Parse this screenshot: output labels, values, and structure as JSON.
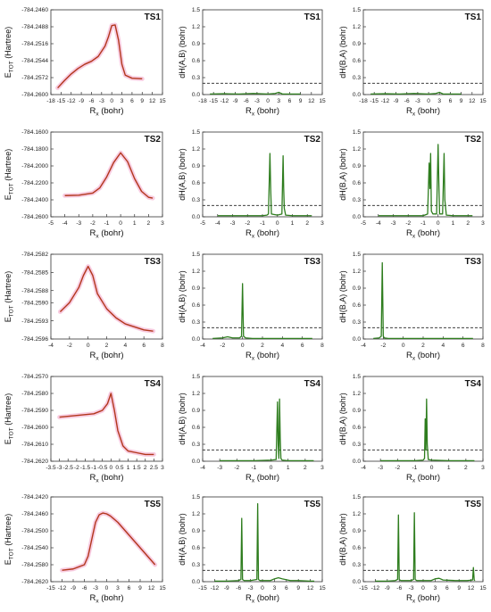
{
  "colors": {
    "energy": "#b2371c",
    "energy_glow": "#f2a3c8",
    "index": "#2e7d1e",
    "threshold": "#222222",
    "frame": "#333333"
  },
  "columns": {
    "energy_ylabel_main": "E",
    "energy_ylabel_sub": "TOT",
    "energy_ylabel_tail": "(Hartree)",
    "ab_ylabel": "dH(A,B) (bohr)",
    "ba_ylabel": "dH(B,A) (bohr)",
    "xlabel_main": "R",
    "xlabel_sub": "x",
    "xlabel_tail": "(bohr)"
  },
  "chart_data": [
    {
      "type": "line",
      "row": 0,
      "col": 0,
      "title": "TS1",
      "xlabel": "Rx (bohr)",
      "ylabel": "ETOT (Hartree)",
      "xlim": [
        -18,
        15
      ],
      "xticks": [
        -18,
        -15,
        -12,
        -9,
        -6,
        -3,
        0,
        3,
        6,
        9,
        12,
        15
      ],
      "ylim": [
        -784.26,
        -784.246
      ],
      "yticks": [
        -784.26,
        -784.2572,
        -784.2544,
        -784.2516,
        -784.2488,
        -784.246
      ],
      "series": [
        {
          "x": [
            -16,
            -14,
            -12,
            -10,
            -8,
            -6,
            -4,
            -2,
            -1,
            0,
            1,
            2,
            3,
            4,
            6,
            9
          ],
          "y": [
            -784.2589,
            -784.2577,
            -784.2566,
            -784.2557,
            -784.255,
            -784.2545,
            -784.2537,
            -784.252,
            -784.2505,
            -784.2486,
            -784.2485,
            -784.251,
            -784.255,
            -784.2568,
            -784.2573,
            -784.2574
          ]
        }
      ]
    },
    {
      "type": "line",
      "row": 0,
      "col": 1,
      "title": "TS1",
      "xlabel": "Rx (bohr)",
      "ylabel": "dH(A,B) (bohr)",
      "xlim": [
        -18,
        15
      ],
      "xticks": [
        -18,
        -15,
        -12,
        -9,
        -6,
        -3,
        0,
        3,
        6,
        9,
        12,
        15
      ],
      "ylim": [
        0,
        1.5
      ],
      "yticks": [
        0,
        0.3,
        0.6,
        0.9,
        1.2,
        1.5
      ],
      "threshold": 0.2,
      "series": [
        {
          "x": [
            -16,
            -12,
            -8,
            -4,
            0,
            2,
            3,
            4,
            6,
            9
          ],
          "y": [
            0.01,
            0.015,
            0.01,
            0.02,
            0.01,
            0.02,
            0.04,
            0.01,
            0.01,
            0.01
          ]
        }
      ]
    },
    {
      "type": "line",
      "row": 0,
      "col": 2,
      "title": "TS1",
      "xlabel": "Rx (bohr)",
      "ylabel": "dH(B,A) (bohr)",
      "xlim": [
        -18,
        15
      ],
      "xticks": [
        -18,
        -15,
        -12,
        -9,
        -6,
        -3,
        0,
        3,
        6,
        9,
        12,
        15
      ],
      "ylim": [
        0,
        1.5
      ],
      "yticks": [
        0,
        0.3,
        0.6,
        0.9,
        1.2,
        1.5
      ],
      "threshold": 0.2,
      "series": [
        {
          "x": [
            -16,
            -12,
            -8,
            -4,
            0,
            2,
            3,
            4,
            6,
            9
          ],
          "y": [
            0.01,
            0.015,
            0.01,
            0.02,
            0.01,
            0.02,
            0.04,
            0.01,
            0.01,
            0.01
          ]
        }
      ]
    },
    {
      "type": "line",
      "row": 1,
      "col": 0,
      "title": "TS2",
      "xlabel": "Rx (bohr)",
      "ylabel": "ETOT (Hartree)",
      "xlim": [
        -5,
        3
      ],
      "xticks": [
        -5,
        -4,
        -3,
        -2,
        -1,
        0,
        1,
        2,
        3
      ],
      "ylim": [
        -784.26,
        -784.16
      ],
      "yticks": [
        -784.26,
        -784.24,
        -784.22,
        -784.2,
        -784.18,
        -784.16
      ],
      "series": [
        {
          "x": [
            -4,
            -3,
            -2,
            -1.5,
            -1,
            -0.5,
            0,
            0.5,
            1,
            1.5,
            2,
            2.3
          ],
          "y": [
            -784.235,
            -784.2345,
            -784.232,
            -784.226,
            -784.213,
            -784.196,
            -784.1845,
            -784.195,
            -784.215,
            -784.23,
            -784.237,
            -784.238
          ]
        }
      ]
    },
    {
      "type": "line",
      "row": 1,
      "col": 1,
      "title": "TS2",
      "xlabel": "Rx (bohr)",
      "ylabel": "dH(A,B) (bohr)",
      "xlim": [
        -5,
        3
      ],
      "xticks": [
        -5,
        -4,
        -3,
        -2,
        -1,
        0,
        1,
        2,
        3
      ],
      "ylim": [
        0,
        1.5
      ],
      "yticks": [
        0,
        0.3,
        0.6,
        0.9,
        1.2,
        1.5
      ],
      "threshold": 0.2,
      "series": [
        {
          "x": [
            -4,
            -3,
            -2,
            -1,
            -0.7,
            -0.6,
            -0.5,
            -0.45,
            -0.4,
            0,
            0.3,
            0.38,
            0.42,
            0.46,
            0.55,
            1,
            2,
            2.3
          ],
          "y": [
            0.02,
            0.02,
            0.02,
            0.02,
            0.03,
            0.05,
            1.12,
            0.5,
            0.05,
            0.03,
            0.05,
            1.08,
            0.5,
            0.15,
            0.03,
            0.02,
            0.02,
            0.02
          ]
        }
      ]
    },
    {
      "type": "line",
      "row": 1,
      "col": 2,
      "title": "TS2",
      "xlabel": "Rx (bohr)",
      "ylabel": "dH(B,A) (bohr)",
      "xlim": [
        -5,
        3
      ],
      "xticks": [
        -5,
        -4,
        -3,
        -2,
        -1,
        0,
        1,
        2,
        3
      ],
      "ylim": [
        0,
        1.5
      ],
      "yticks": [
        0,
        0.3,
        0.6,
        0.9,
        1.2,
        1.5
      ],
      "threshold": 0.2,
      "series": [
        {
          "x": [
            -4,
            -3,
            -2,
            -1,
            -0.7,
            -0.6,
            -0.55,
            -0.5,
            -0.45,
            -0.35,
            -0.1,
            0.0,
            0.05,
            0.1,
            0.3,
            0.4,
            0.45,
            0.55,
            1,
            2,
            2.3
          ],
          "y": [
            0.02,
            0.02,
            0.02,
            0.02,
            0.05,
            0.95,
            0.5,
            1.12,
            0.1,
            0.05,
            0.05,
            1.28,
            0.6,
            0.05,
            0.05,
            1.12,
            0.3,
            0.03,
            0.02,
            0.02,
            0.02
          ]
        }
      ]
    },
    {
      "type": "line",
      "row": 2,
      "col": 0,
      "title": "TS3",
      "xlabel": "Rx (bohr)",
      "ylabel": "ETOT (Hartree)",
      "xlim": [
        -4,
        8
      ],
      "xticks": [
        -4,
        -2,
        0,
        2,
        4,
        6,
        8
      ],
      "ylim": [
        -784.2596,
        -784.2582
      ],
      "yticks": [
        -784.2596,
        -784.2593,
        -784.259,
        -784.2588,
        -784.2585,
        -784.2582
      ],
      "series": [
        {
          "x": [
            -3,
            -2,
            -1,
            -0.5,
            0,
            0.5,
            1,
            2,
            3,
            4,
            5,
            6,
            7
          ],
          "y": [
            -784.25915,
            -784.259,
            -784.25875,
            -784.25855,
            -784.2584,
            -784.25855,
            -784.25885,
            -784.2591,
            -784.25925,
            -784.25935,
            -784.2594,
            -784.25945,
            -784.25947
          ]
        }
      ]
    },
    {
      "type": "line",
      "row": 2,
      "col": 1,
      "title": "TS3",
      "xlabel": "Rx (bohr)",
      "ylabel": "dH(A,B) (bohr)",
      "xlim": [
        -4,
        8
      ],
      "xticks": [
        -4,
        -2,
        0,
        2,
        4,
        6,
        8
      ],
      "ylim": [
        0,
        1.5
      ],
      "yticks": [
        0,
        0.3,
        0.6,
        0.9,
        1.2,
        1.5
      ],
      "threshold": 0.2,
      "series": [
        {
          "x": [
            -3,
            -2,
            -1.5,
            -1,
            -0.3,
            -0.1,
            0,
            0.1,
            0.3,
            1,
            3,
            5,
            7
          ],
          "y": [
            0.01,
            0.02,
            0.04,
            0.02,
            0.02,
            0.05,
            0.98,
            0.05,
            0.02,
            0.01,
            0.01,
            0.01,
            0.01
          ]
        }
      ]
    },
    {
      "type": "line",
      "row": 2,
      "col": 2,
      "title": "TS3",
      "xlabel": "Rx (bohr)",
      "ylabel": "dH(B,A) (bohr)",
      "xlim": [
        -4,
        8
      ],
      "xticks": [
        -4,
        -2,
        0,
        2,
        4,
        6,
        8
      ],
      "ylim": [
        0,
        1.5
      ],
      "yticks": [
        0,
        0.3,
        0.6,
        0.9,
        1.2,
        1.5
      ],
      "threshold": 0.2,
      "series": [
        {
          "x": [
            -3,
            -2.4,
            -2.2,
            -2.1,
            -2.0,
            -1.9,
            -1.5,
            0,
            3,
            5,
            7
          ],
          "y": [
            0.01,
            0.02,
            0.05,
            1.35,
            0.05,
            0.02,
            0.01,
            0.01,
            0.01,
            0.01,
            0.01
          ]
        }
      ]
    },
    {
      "type": "line",
      "row": 3,
      "col": 0,
      "title": "TS4",
      "xlabel": "Rx (bohr)",
      "ylabel": "ETOT (Hartree)",
      "xlim": [
        -3.5,
        3
      ],
      "xticks": [
        -3.5,
        -3,
        -2.5,
        -2,
        -1.5,
        -1,
        -0.5,
        0,
        0.5,
        1,
        1.5,
        2,
        2.5,
        3
      ],
      "ylim": [
        -784.262,
        -784.257
      ],
      "yticks": [
        -784.262,
        -784.261,
        -784.26,
        -784.259,
        -784.258,
        -784.257
      ],
      "series": [
        {
          "x": [
            -3,
            -2,
            -1,
            -0.5,
            -0.2,
            0,
            0.2,
            0.4,
            0.7,
            1,
            1.5,
            2,
            2.5
          ],
          "y": [
            -784.2594,
            -784.2593,
            -784.2592,
            -784.259,
            -784.2586,
            -784.258,
            -784.259,
            -784.2602,
            -784.2611,
            -784.2614,
            -784.2615,
            -784.2616,
            -784.2616
          ]
        }
      ]
    },
    {
      "type": "line",
      "row": 3,
      "col": 1,
      "title": "TS4",
      "xlabel": "Rx (bohr)",
      "ylabel": "dH(A,B) (bohr)",
      "xlim": [
        -4,
        3
      ],
      "xticks": [
        -4,
        -3,
        -2,
        -1,
        0,
        1,
        2,
        3
      ],
      "ylim": [
        0,
        1.5
      ],
      "yticks": [
        0,
        0.3,
        0.6,
        0.9,
        1.2,
        1.5
      ],
      "threshold": 0.2,
      "series": [
        {
          "x": [
            -3,
            -2,
            -1,
            0,
            0.3,
            0.38,
            0.42,
            0.46,
            0.5,
            0.54,
            0.58,
            0.65,
            1,
            2,
            2.5
          ],
          "y": [
            0.01,
            0.01,
            0.01,
            0.02,
            0.03,
            1.05,
            0.3,
            0.05,
            1.1,
            0.4,
            0.05,
            0.02,
            0.01,
            0.01,
            0.01
          ]
        }
      ]
    },
    {
      "type": "line",
      "row": 3,
      "col": 2,
      "title": "TS4",
      "xlabel": "Rx (bohr)",
      "ylabel": "dH(B,A) (bohr)",
      "xlim": [
        -4,
        3
      ],
      "xticks": [
        -4,
        -3,
        -2,
        -1,
        0,
        1,
        2,
        3
      ],
      "ylim": [
        0,
        1.5
      ],
      "yticks": [
        0,
        0.3,
        0.6,
        0.9,
        1.2,
        1.5
      ],
      "threshold": 0.2,
      "series": [
        {
          "x": [
            -3,
            -2,
            -1,
            -0.5,
            -0.42,
            -0.38,
            -0.34,
            -0.3,
            -0.26,
            -0.2,
            0,
            1,
            2,
            2.5
          ],
          "y": [
            0.01,
            0.01,
            0.01,
            0.02,
            0.05,
            0.75,
            0.2,
            1.1,
            0.3,
            0.03,
            0.02,
            0.01,
            0.01,
            0.01
          ]
        }
      ]
    },
    {
      "type": "line",
      "row": 4,
      "col": 0,
      "title": "TS5",
      "xlabel": "Rx (bohr)",
      "ylabel": "ETOT (Hartree)",
      "xlim": [
        -15,
        15
      ],
      "xticks": [
        -15,
        -12,
        -9,
        -6,
        -3,
        0,
        3,
        6,
        9,
        12,
        15
      ],
      "ylim": [
        -784.262,
        -784.242
      ],
      "yticks": [
        -784.262,
        -784.258,
        -784.254,
        -784.25,
        -784.246,
        -784.242
      ],
      "series": [
        {
          "x": [
            -12,
            -9,
            -6,
            -5,
            -4,
            -3,
            -2,
            -1,
            0,
            1,
            3,
            6,
            9,
            12,
            13
          ],
          "y": [
            -784.2593,
            -784.259,
            -784.258,
            -784.256,
            -784.252,
            -784.248,
            -784.2462,
            -784.2458,
            -784.246,
            -784.2465,
            -784.248,
            -784.251,
            -784.254,
            -784.257,
            -784.258
          ]
        }
      ]
    },
    {
      "type": "line",
      "row": 4,
      "col": 1,
      "title": "TS5",
      "xlabel": "Rx (bohr)",
      "ylabel": "dH(A,B) (bohr)",
      "xlim": [
        -15,
        15
      ],
      "xticks": [
        -15,
        -12,
        -9,
        -6,
        -3,
        0,
        3,
        6,
        9,
        12,
        15
      ],
      "ylim": [
        0,
        1.5
      ],
      "yticks": [
        0,
        0.3,
        0.6,
        0.9,
        1.2,
        1.5
      ],
      "threshold": 0.2,
      "series": [
        {
          "x": [
            -12,
            -9,
            -6,
            -5.4,
            -5.2,
            -5.0,
            -4.6,
            -3,
            -1.4,
            -1.2,
            -1.0,
            -0.6,
            2,
            3,
            4,
            5,
            7,
            9,
            12,
            13
          ],
          "y": [
            0.01,
            0.01,
            0.02,
            0.04,
            1.12,
            0.04,
            0.02,
            0.02,
            0.04,
            1.38,
            0.04,
            0.02,
            0.02,
            0.05,
            0.07,
            0.05,
            0.02,
            0.02,
            0.01,
            0.01
          ]
        }
      ]
    },
    {
      "type": "line",
      "row": 4,
      "col": 2,
      "title": "TS5",
      "xlabel": "Rx (bohr)",
      "ylabel": "dH(B,A) (bohr)",
      "xlim": [
        -15,
        15
      ],
      "xticks": [
        -15,
        -12,
        -9,
        -6,
        -3,
        0,
        3,
        6,
        9,
        12,
        15
      ],
      "ylim": [
        0,
        1.5
      ],
      "yticks": [
        0,
        0.3,
        0.6,
        0.9,
        1.2,
        1.5
      ],
      "threshold": 0.2,
      "series": [
        {
          "x": [
            -12,
            -9,
            -7,
            -6.4,
            -6.2,
            -6.0,
            -5.6,
            -3,
            -2.4,
            -2.2,
            -2.0,
            -1.6,
            2,
            3,
            4,
            5,
            8,
            11,
            12.4,
            12.6,
            12.8,
            13
          ],
          "y": [
            0.01,
            0.01,
            0.02,
            0.04,
            1.18,
            0.04,
            0.02,
            0.02,
            0.04,
            1.22,
            0.04,
            0.02,
            0.02,
            0.05,
            0.06,
            0.03,
            0.02,
            0.02,
            0.03,
            0.25,
            0.03,
            0.02
          ]
        }
      ]
    }
  ]
}
